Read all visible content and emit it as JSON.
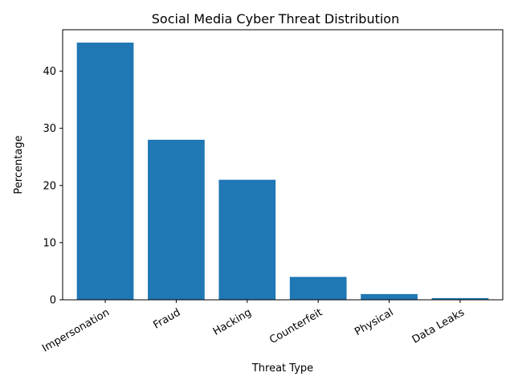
{
  "chart_data": {
    "type": "bar",
    "title": "Social Media Cyber Threat Distribution",
    "xlabel": "Threat Type",
    "ylabel": "Percentage",
    "categories": [
      "Impersonation",
      "Fraud",
      "Hacking",
      "Counterfeit",
      "Physical",
      "Data Leaks"
    ],
    "values": [
      45,
      28,
      21,
      4,
      1,
      0.3
    ],
    "ylim": [
      0,
      47.25
    ],
    "yticks": [
      0,
      10,
      20,
      30,
      40
    ],
    "grid": false,
    "legend": "none",
    "bar_color": "#1f77b4"
  }
}
